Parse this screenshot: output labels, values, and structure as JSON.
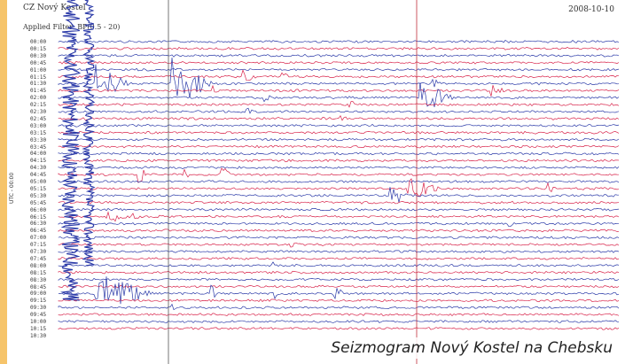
{
  "header": {
    "station": "CZ Nový Kostel",
    "applied": "Applied Filter: BP(0.5 - 20)",
    "date": "2008-10-10"
  },
  "axis_label": "UTC - 00:00",
  "time_ticks": [
    "00:00",
    "00:15",
    "00:30",
    "00:45",
    "01:00",
    "01:15",
    "01:30",
    "01:45",
    "02:00",
    "02:15",
    "02:30",
    "02:45",
    "03:00",
    "03:15",
    "03:30",
    "03:45",
    "04:00",
    "04:15",
    "04:30",
    "04:45",
    "05:00",
    "05:15",
    "05:30",
    "05:45",
    "06:00",
    "06:15",
    "06:30",
    "06:45",
    "07:00",
    "07:15",
    "07:30",
    "07:45",
    "08:00",
    "08:15",
    "08:30",
    "08:45",
    "09:00",
    "09:15",
    "09:30",
    "09:45",
    "10:00",
    "10:15",
    "10:30"
  ],
  "caption": "Seizmogram Nový Kostel na Chebsku",
  "colors": {
    "trace_a": "#2b3aa8",
    "trace_b": "#d8234a",
    "marker": "#c0303a",
    "border": "#f6c46a"
  }
}
